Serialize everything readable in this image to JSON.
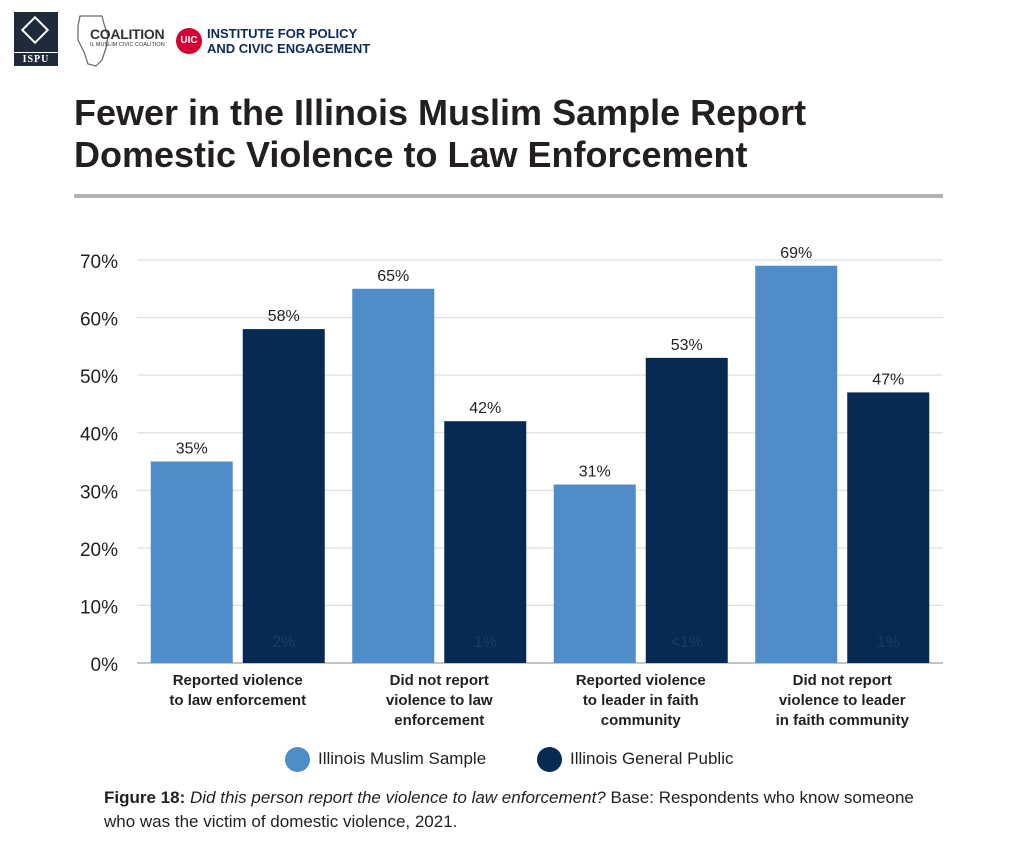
{
  "logos": {
    "ispu": {
      "text": "ISPU"
    },
    "coalition": {
      "name": "COALITION",
      "subtitle": "IL MUSLIM CIVIC COALITION"
    },
    "uic": {
      "badge": "UIC",
      "line1": "INSTITUTE FOR POLICY",
      "line2": "AND CIVIC ENGAGEMENT"
    }
  },
  "title": {
    "line1": "Fewer in the Illinois Muslim Sample Report",
    "line2": "Domestic Violence to Law Enforcement"
  },
  "colors": {
    "muslim": "#4f8cca",
    "general": "#062a52",
    "grid": "#d9d9d9",
    "rule": "#b3b3b3"
  },
  "chart_data": {
    "type": "bar",
    "title": "Fewer in the Illinois Muslim Sample Report Domestic Violence to Law Enforcement",
    "xlabel": "",
    "ylabel": "",
    "ylim": [
      0,
      70
    ],
    "yticks": [
      "0%",
      "10%",
      "20%",
      "30%",
      "40%",
      "50%",
      "60%",
      "70%"
    ],
    "categories": [
      [
        "Reported violence",
        "to law enforcement"
      ],
      [
        "Did not report",
        "violence to law",
        "enforcement"
      ],
      [
        "Reported violence",
        "to leader in faith",
        "community"
      ],
      [
        "Did not report",
        "violence to leader",
        "in faith community"
      ]
    ],
    "series": [
      {
        "name": "Illinois Muslim Sample",
        "values": [
          35,
          65,
          31,
          69
        ],
        "labels": [
          "35%",
          "65%",
          "31%",
          "69%"
        ]
      },
      {
        "name": "Illinois General Public",
        "values": [
          58,
          42,
          53,
          47
        ],
        "labels": [
          "58%",
          "42%",
          "53%",
          "47%"
        ]
      }
    ],
    "faint_labels": [
      "2%",
      "1%",
      "<1%",
      "1%"
    ],
    "grid": true,
    "legend": "bottom"
  },
  "caption": {
    "label": "Figure 18:",
    "question": "Did this person report the violence to law enforcement?",
    "base": "Base: Respondents who know someone who was the victim of domestic violence, 2021."
  }
}
